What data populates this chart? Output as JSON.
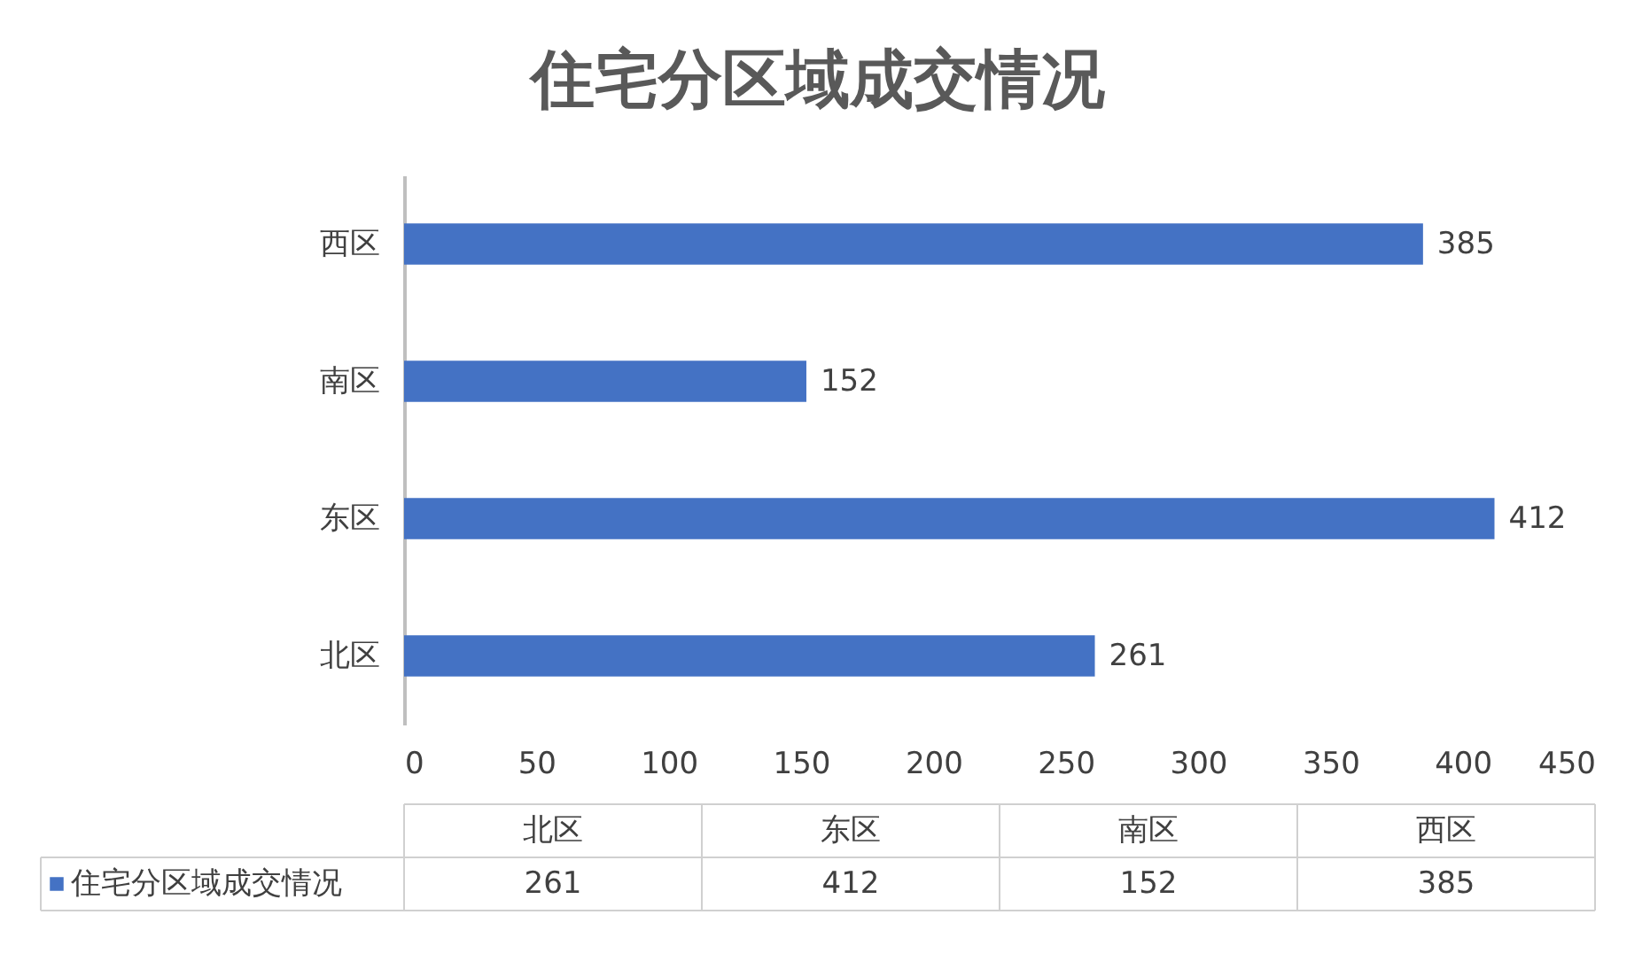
{
  "chart_data": {
    "type": "bar",
    "orientation": "horizontal",
    "title": "住宅分区域成交情况",
    "categories": [
      "西区",
      "南区",
      "东区",
      "北区"
    ],
    "series": [
      {
        "name": "住宅分区域成交情况",
        "color": "#4472c4",
        "values": [
          385,
          152,
          412,
          261
        ]
      }
    ],
    "xlim": [
      0,
      450
    ],
    "xticks": [
      0,
      50,
      100,
      150,
      200,
      250,
      300,
      350,
      400,
      450
    ],
    "data_labels": true,
    "annotations": [
      "261",
      "412",
      "152",
      "385"
    ],
    "legend": "bottom",
    "grid": false
  }
}
